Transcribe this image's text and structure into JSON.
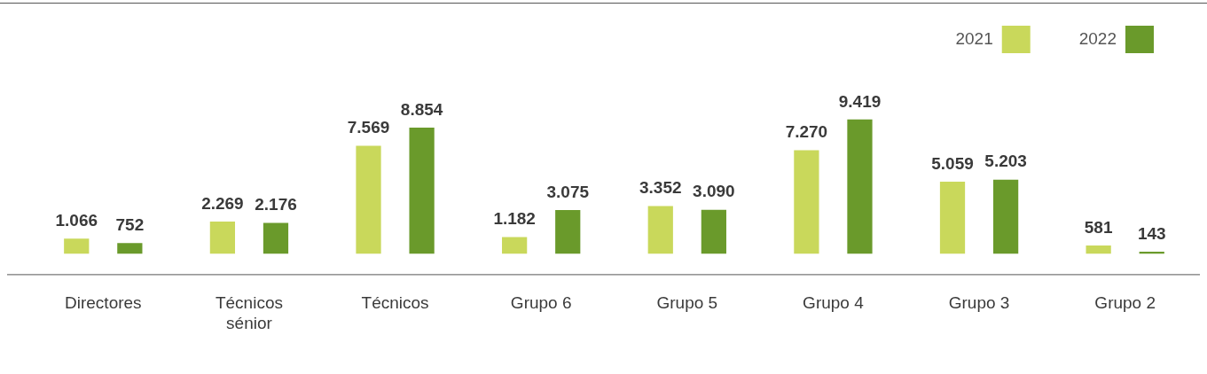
{
  "chart_data": {
    "type": "bar",
    "categories": [
      "Directores",
      "Técnicos sénior",
      "Técnicos",
      "Grupo 6",
      "Grupo 5",
      "Grupo 4",
      "Grupo 3",
      "Grupo 2"
    ],
    "series": [
      {
        "name": "2021",
        "color": "#c9d85b",
        "values": [
          1066,
          2269,
          7569,
          1182,
          3352,
          7270,
          5059,
          581
        ],
        "value_labels": [
          "1.066",
          "2.269",
          "7.569",
          "1.182",
          "3.352",
          "7.270",
          "5.059",
          "581"
        ]
      },
      {
        "name": "2022",
        "color": "#6a9a2b",
        "values": [
          752,
          2176,
          8854,
          3075,
          3090,
          9419,
          5203,
          143
        ],
        "value_labels": [
          "752",
          "2.176",
          "8.854",
          "3.075",
          "3.090",
          "9.419",
          "5.203",
          "143"
        ]
      }
    ],
    "legend": "top right",
    "grid": false
  }
}
